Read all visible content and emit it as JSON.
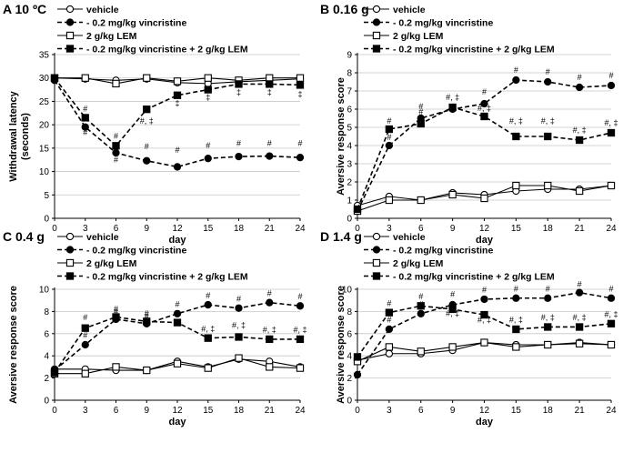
{
  "chart_data": [
    {
      "type": "line",
      "panel": "A",
      "title": "10 ºC",
      "ylabel": "Withdrawal latency (seconds)",
      "ylabel_lines": [
        "Withdrawal latency",
        "(seconds)"
      ],
      "xlabel": "day",
      "x": [
        0,
        3,
        6,
        9,
        12,
        15,
        18,
        21,
        24
      ],
      "ylim": [
        0,
        35
      ],
      "yticks": [
        0,
        5,
        10,
        15,
        20,
        25,
        30,
        35
      ],
      "series": [
        {
          "name": "vehicle",
          "marker": "circle-open",
          "dashed": false,
          "values": [
            30,
            29.8,
            29.5,
            29.8,
            29,
            28.8,
            29.2,
            29.5,
            29.8
          ]
        },
        {
          "name": "0.2 mg/kg vincristine",
          "marker": "circle-filled",
          "dashed": true,
          "values": [
            29.5,
            19.5,
            14,
            12.3,
            11,
            12.8,
            13.2,
            13.3,
            13
          ]
        },
        {
          "name": "2 g/kg LEM",
          "marker": "square-open",
          "dashed": false,
          "values": [
            30,
            30,
            28.8,
            30,
            29.3,
            30,
            29.5,
            30,
            30
          ]
        },
        {
          "name": "0.2 mg/kg vincristine + 2 g/kg LEM",
          "marker": "square-filled",
          "dashed": true,
          "values": [
            30,
            21.5,
            15.5,
            23.3,
            26.3,
            27.5,
            28.7,
            28.7,
            28.5
          ]
        }
      ],
      "annotations": [
        {
          "text": "#",
          "x": 3,
          "y": 22.8
        },
        {
          "text": "#",
          "x": 3,
          "y": 17.8
        },
        {
          "text": "#",
          "x": 6,
          "y": 17
        },
        {
          "text": "#",
          "x": 6,
          "y": 12
        },
        {
          "text": "#",
          "x": 9,
          "y": 14.8
        },
        {
          "text": "#, ‡",
          "x": 9,
          "y": 20.2
        },
        {
          "text": "#",
          "x": 12,
          "y": 14
        },
        {
          "text": "‡",
          "x": 12,
          "y": 24
        },
        {
          "text": "#",
          "x": 15,
          "y": 15
        },
        {
          "text": "‡",
          "x": 15,
          "y": 25.3
        },
        {
          "text": "#",
          "x": 18,
          "y": 15.5
        },
        {
          "text": "‡",
          "x": 18,
          "y": 26.3
        },
        {
          "text": "#",
          "x": 21,
          "y": 15.5
        },
        {
          "text": "‡",
          "x": 21,
          "y": 26.3
        },
        {
          "text": "#",
          "x": 24,
          "y": 15.5
        },
        {
          "text": "‡",
          "x": 24,
          "y": 26
        }
      ]
    },
    {
      "type": "line",
      "panel": "B",
      "title": "0.16 g",
      "ylabel": "Aversive response score",
      "xlabel": "day",
      "x": [
        0,
        3,
        6,
        9,
        12,
        15,
        18,
        21,
        24
      ],
      "ylim": [
        0,
        9
      ],
      "yticks": [
        0,
        1,
        2,
        3,
        4,
        5,
        6,
        7,
        8,
        9
      ],
      "series": [
        {
          "name": "vehicle",
          "marker": "circle-open",
          "dashed": false,
          "values": [
            0.7,
            1.2,
            1.0,
            1.4,
            1.3,
            1.5,
            1.6,
            1.6,
            1.8
          ]
        },
        {
          "name": "0.2 mg/kg vincristine",
          "marker": "circle-filled",
          "dashed": true,
          "values": [
            0.4,
            4.0,
            5.5,
            6.0,
            6.3,
            7.6,
            7.5,
            7.2,
            7.3
          ]
        },
        {
          "name": "2 g/kg LEM",
          "marker": "square-open",
          "dashed": false,
          "values": [
            0.4,
            1.0,
            1.0,
            1.3,
            1.1,
            1.8,
            1.8,
            1.5,
            1.8
          ]
        },
        {
          "name": "0.2 mg/kg vincristine + 2 g/kg LEM",
          "marker": "square-filled",
          "dashed": true,
          "values": [
            0.5,
            4.9,
            5.2,
            6.1,
            5.6,
            4.5,
            4.5,
            4.3,
            4.7
          ]
        }
      ],
      "annotations": [
        {
          "text": "#",
          "x": 3,
          "y": 5.2
        },
        {
          "text": "#",
          "x": 3,
          "y": 4.3
        },
        {
          "text": "#",
          "x": 6,
          "y": 6.0
        },
        {
          "text": "#",
          "x": 6,
          "y": 5.7
        },
        {
          "text": "#, ‡",
          "x": 9,
          "y": 6.5
        },
        {
          "text": "#",
          "x": 12,
          "y": 6.8
        },
        {
          "text": "#, ‡",
          "x": 12,
          "y": 5.9
        },
        {
          "text": "#",
          "x": 15,
          "y": 8.0
        },
        {
          "text": "#, ‡",
          "x": 15,
          "y": 5.2
        },
        {
          "text": "#",
          "x": 18,
          "y": 7.9
        },
        {
          "text": "#, ‡",
          "x": 18,
          "y": 5.2
        },
        {
          "text": "#",
          "x": 21,
          "y": 7.6
        },
        {
          "text": "#, ‡",
          "x": 21,
          "y": 4.7
        },
        {
          "text": "#",
          "x": 24,
          "y": 7.7
        },
        {
          "text": "#, ‡",
          "x": 24,
          "y": 5.1
        }
      ]
    },
    {
      "type": "line",
      "panel": "C",
      "title": "0.4 g",
      "ylabel": "Aversive response score",
      "xlabel": "day",
      "x": [
        0,
        3,
        6,
        9,
        12,
        15,
        18,
        21,
        24
      ],
      "ylim": [
        0,
        10
      ],
      "yticks": [
        0,
        2,
        4,
        6,
        8,
        10
      ],
      "series": [
        {
          "name": "vehicle",
          "marker": "circle-open",
          "dashed": false,
          "values": [
            2.8,
            2.8,
            2.7,
            2.7,
            3.5,
            3.0,
            3.7,
            3.5,
            3.0
          ]
        },
        {
          "name": "0.2 mg/kg vincristine",
          "marker": "circle-filled",
          "dashed": true,
          "values": [
            2.7,
            5.0,
            7.3,
            6.9,
            7.8,
            8.6,
            8.3,
            8.8,
            8.5
          ]
        },
        {
          "name": "2 g/kg LEM",
          "marker": "square-open",
          "dashed": false,
          "values": [
            2.4,
            2.4,
            3.0,
            2.7,
            3.3,
            2.9,
            3.8,
            3.0,
            2.9
          ]
        },
        {
          "name": "0.2 mg/kg vincristine + 2 g/kg LEM",
          "marker": "square-filled",
          "dashed": true,
          "values": [
            2.5,
            6.5,
            7.5,
            7.1,
            7.0,
            5.6,
            5.7,
            5.5,
            5.5
          ]
        }
      ],
      "annotations": [
        {
          "text": "#",
          "x": 3,
          "y": 7.2
        },
        {
          "text": "#",
          "x": 3,
          "y": 5.6
        },
        {
          "text": "#",
          "x": 6,
          "y": 8.0
        },
        {
          "text": "#",
          "x": 6,
          "y": 7.7
        },
        {
          "text": "#",
          "x": 9,
          "y": 7.6
        },
        {
          "text": "#",
          "x": 9,
          "y": 7.3
        },
        {
          "text": "#",
          "x": 12,
          "y": 8.4
        },
        {
          "text": "#",
          "x": 12,
          "y": 7.6
        },
        {
          "text": "#",
          "x": 15,
          "y": 9.2
        },
        {
          "text": "#, ‡",
          "x": 15,
          "y": 6.2
        },
        {
          "text": "#",
          "x": 18,
          "y": 8.9
        },
        {
          "text": "#, ‡",
          "x": 18,
          "y": 6.5
        },
        {
          "text": "#",
          "x": 21,
          "y": 9.4
        },
        {
          "text": "#, ‡",
          "x": 21,
          "y": 6.1
        },
        {
          "text": "#",
          "x": 24,
          "y": 9.1
        },
        {
          "text": "#, ‡",
          "x": 24,
          "y": 6.1
        }
      ]
    },
    {
      "type": "line",
      "panel": "D",
      "title": "1.4 g",
      "ylabel": "Aversive response score",
      "xlabel": "day",
      "x": [
        0,
        3,
        6,
        9,
        12,
        15,
        18,
        21,
        24
      ],
      "ylim": [
        0,
        10
      ],
      "yticks": [
        0,
        2,
        4,
        6,
        8,
        10
      ],
      "series": [
        {
          "name": "vehicle",
          "marker": "circle-open",
          "dashed": false,
          "values": [
            3.6,
            4.2,
            4.2,
            4.5,
            5.2,
            5.0,
            5.0,
            5.2,
            5.0
          ]
        },
        {
          "name": "0.2 mg/kg vincristine",
          "marker": "circle-filled",
          "dashed": true,
          "values": [
            2.3,
            6.4,
            7.8,
            8.6,
            9.1,
            9.2,
            9.2,
            9.7,
            9.2
          ]
        },
        {
          "name": "2 g/kg LEM",
          "marker": "square-open",
          "dashed": false,
          "values": [
            3.5,
            4.8,
            4.4,
            4.8,
            5.2,
            4.8,
            5.0,
            5.1,
            5.0
          ]
        },
        {
          "name": "0.2 mg/kg vincristine + 2 g/kg LEM",
          "marker": "square-filled",
          "dashed": true,
          "values": [
            3.9,
            7.9,
            8.5,
            8.2,
            7.7,
            6.4,
            6.6,
            6.6,
            6.9
          ]
        }
      ],
      "annotations": [
        {
          "text": "#",
          "x": 3,
          "y": 8.5
        },
        {
          "text": "#",
          "x": 3,
          "y": 7.0
        },
        {
          "text": "#",
          "x": 6,
          "y": 9.1
        },
        {
          "text": "#",
          "x": 6,
          "y": 8.4
        },
        {
          "text": "#",
          "x": 9,
          "y": 9.3
        },
        {
          "text": "#, ‡",
          "x": 9,
          "y": 7.6
        },
        {
          "text": "#",
          "x": 12,
          "y": 9.7
        },
        {
          "text": "#, ‡",
          "x": 12,
          "y": 7.0
        },
        {
          "text": "#",
          "x": 15,
          "y": 9.8
        },
        {
          "text": "#, ‡",
          "x": 15,
          "y": 7.0
        },
        {
          "text": "#",
          "x": 18,
          "y": 9.8
        },
        {
          "text": "#, ‡",
          "x": 18,
          "y": 7.2
        },
        {
          "text": "#",
          "x": 21,
          "y": 10.2
        },
        {
          "text": "#, ‡",
          "x": 21,
          "y": 7.2
        },
        {
          "text": "#",
          "x": 24,
          "y": 9.8
        },
        {
          "text": "#, ‡",
          "x": 24,
          "y": 7.5
        }
      ]
    }
  ]
}
